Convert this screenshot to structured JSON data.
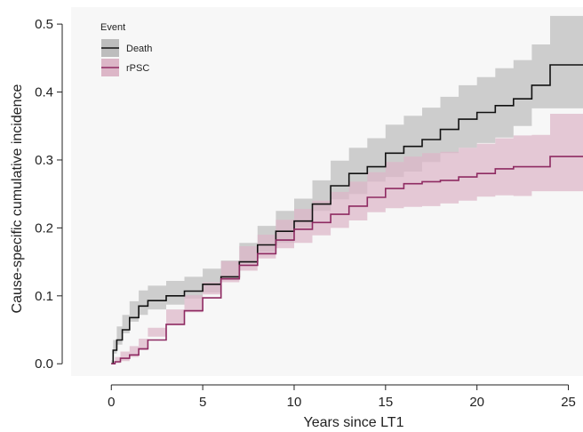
{
  "chart_data": {
    "type": "line",
    "xlabel": "Years since LT1",
    "ylabel": "Cause-specific cumulative incidence",
    "xlim": [
      -2.2,
      25.8
    ],
    "ylim": [
      -0.018,
      0.525
    ],
    "xticks": [
      0,
      5,
      10,
      15,
      20,
      25
    ],
    "yticks": [
      0.0,
      0.1,
      0.2,
      0.3,
      0.4,
      0.5
    ],
    "ytick_labels": [
      "0.0",
      "0.1",
      "0.2",
      "0.3",
      "0.4",
      "0.5"
    ],
    "grid": false,
    "panel_background": "#f7f7f7",
    "legend": {
      "title": "Event",
      "placement": "top-left",
      "entries": [
        "Death",
        "rPSC"
      ]
    },
    "series": [
      {
        "name": "Death",
        "color": "#111111",
        "band_color": "#bdbdbd",
        "x": [
          0,
          0.1,
          0.3,
          0.6,
          1.0,
          1.5,
          2.0,
          3.0,
          4.0,
          5.0,
          6.0,
          7.0,
          8.0,
          9.0,
          10.0,
          11.0,
          12.0,
          13.0,
          14.0,
          15.0,
          16.0,
          17.0,
          18.0,
          19.0,
          20.0,
          21.0,
          22.0,
          23.0,
          24.0,
          25.8
        ],
        "y": [
          0.0,
          0.02,
          0.035,
          0.05,
          0.068,
          0.085,
          0.093,
          0.1,
          0.107,
          0.117,
          0.128,
          0.15,
          0.175,
          0.195,
          0.21,
          0.235,
          0.262,
          0.28,
          0.29,
          0.31,
          0.32,
          0.33,
          0.345,
          0.36,
          0.37,
          0.38,
          0.39,
          0.41,
          0.44,
          0.44
        ],
        "lower": [
          0.0,
          0.005,
          0.015,
          0.028,
          0.045,
          0.062,
          0.072,
          0.08,
          0.087,
          0.096,
          0.105,
          0.125,
          0.148,
          0.165,
          0.178,
          0.2,
          0.225,
          0.242,
          0.25,
          0.268,
          0.275,
          0.283,
          0.297,
          0.31,
          0.318,
          0.325,
          0.333,
          0.35,
          0.376,
          0.376
        ],
        "upper": [
          0.0,
          0.035,
          0.055,
          0.072,
          0.092,
          0.108,
          0.115,
          0.122,
          0.128,
          0.14,
          0.152,
          0.178,
          0.203,
          0.225,
          0.243,
          0.27,
          0.299,
          0.318,
          0.332,
          0.352,
          0.365,
          0.377,
          0.393,
          0.41,
          0.422,
          0.435,
          0.447,
          0.47,
          0.512,
          0.512
        ]
      },
      {
        "name": "rPSC",
        "color": "#8e2a62",
        "band_color": "#dcb6c7",
        "x": [
          0,
          0.2,
          0.5,
          1.0,
          1.5,
          2.0,
          3.0,
          4.0,
          5.0,
          6.0,
          7.0,
          8.0,
          9.0,
          10.0,
          11.0,
          12.0,
          13.0,
          14.0,
          15.0,
          16.0,
          17.0,
          18.0,
          19.0,
          20.0,
          21.0,
          22.0,
          23.0,
          24.0,
          25.8
        ],
        "y": [
          0.0,
          0.003,
          0.008,
          0.013,
          0.022,
          0.035,
          0.058,
          0.078,
          0.097,
          0.125,
          0.145,
          0.162,
          0.182,
          0.198,
          0.208,
          0.22,
          0.232,
          0.245,
          0.258,
          0.265,
          0.268,
          0.27,
          0.275,
          0.28,
          0.287,
          0.29,
          0.29,
          0.305,
          0.305
        ],
        "lower": [
          0.0,
          0.0,
          0.001,
          0.004,
          0.01,
          0.02,
          0.04,
          0.058,
          0.076,
          0.102,
          0.12,
          0.137,
          0.155,
          0.17,
          0.178,
          0.189,
          0.2,
          0.211,
          0.223,
          0.229,
          0.231,
          0.232,
          0.236,
          0.24,
          0.246,
          0.248,
          0.247,
          0.254,
          0.254
        ],
        "upper": [
          0.0,
          0.01,
          0.018,
          0.026,
          0.037,
          0.053,
          0.08,
          0.101,
          0.12,
          0.151,
          0.173,
          0.19,
          0.212,
          0.228,
          0.24,
          0.253,
          0.268,
          0.282,
          0.297,
          0.305,
          0.31,
          0.312,
          0.318,
          0.324,
          0.332,
          0.336,
          0.337,
          0.368,
          0.368
        ]
      }
    ]
  }
}
